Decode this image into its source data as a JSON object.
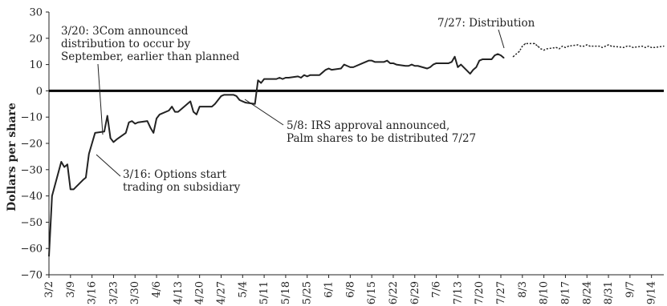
{
  "chart_data": {
    "type": "line",
    "title": "",
    "xlabel": "",
    "ylabel": "Dollars per share",
    "ylim": [
      -70,
      30
    ],
    "y_ticks": [
      30,
      20,
      10,
      0,
      -10,
      -20,
      -30,
      -40,
      -50,
      -60,
      -70
    ],
    "x_range": [
      "2000-03-02",
      "2000-09-18"
    ],
    "x_tick_labels": [
      "3/2",
      "3/9",
      "3/16",
      "3/23",
      "3/30",
      "4/6",
      "4/13",
      "4/20",
      "4/27",
      "5/4",
      "5/11",
      "5/18",
      "5/25",
      "6/1",
      "6/8",
      "6/15",
      "6/22",
      "6/29",
      "7/6",
      "7/13",
      "7/20",
      "7/27",
      "8/3",
      "8/10",
      "8/17",
      "8/24",
      "8/31",
      "9/7",
      "9/14"
    ],
    "x_tick_dates": [
      "2000-03-02",
      "2000-03-09",
      "2000-03-16",
      "2000-03-23",
      "2000-03-30",
      "2000-04-06",
      "2000-04-13",
      "2000-04-20",
      "2000-04-27",
      "2000-05-04",
      "2000-05-11",
      "2000-05-18",
      "2000-05-25",
      "2000-06-01",
      "2000-06-08",
      "2000-06-15",
      "2000-06-22",
      "2000-06-29",
      "2000-07-06",
      "2000-07-13",
      "2000-07-20",
      "2000-07-27",
      "2000-08-03",
      "2000-08-10",
      "2000-08-17",
      "2000-08-24",
      "2000-08-31",
      "2000-09-07",
      "2000-09-14"
    ],
    "zero_line": true,
    "grid": false,
    "series": [
      {
        "style": "solid",
        "color": "#222222",
        "points": [
          [
            "2000-03-02",
            -63
          ],
          [
            "2000-03-03",
            -40
          ],
          [
            "2000-03-06",
            -27
          ],
          [
            "2000-03-07",
            -29
          ],
          [
            "2000-03-08",
            -28
          ],
          [
            "2000-03-09",
            -37.5
          ],
          [
            "2000-03-10",
            -37.5
          ],
          [
            "2000-03-13",
            -34
          ],
          [
            "2000-03-14",
            -33
          ],
          [
            "2000-03-15",
            -24
          ],
          [
            "2000-03-16",
            -20
          ],
          [
            "2000-03-17",
            -16
          ],
          [
            "2000-03-20",
            -15.5
          ],
          [
            "2000-03-21",
            -9.5
          ],
          [
            "2000-03-22",
            -18
          ],
          [
            "2000-03-23",
            -19.5
          ],
          [
            "2000-03-24",
            -18.5
          ],
          [
            "2000-03-27",
            -16
          ],
          [
            "2000-03-28",
            -12
          ],
          [
            "2000-03-29",
            -11.5
          ],
          [
            "2000-03-30",
            -12.5
          ],
          [
            "2000-03-31",
            -12
          ],
          [
            "2000-04-03",
            -11.5
          ],
          [
            "2000-04-04",
            -14
          ],
          [
            "2000-04-05",
            -16
          ],
          [
            "2000-04-06",
            -10.5
          ],
          [
            "2000-04-07",
            -9
          ],
          [
            "2000-04-10",
            -7.5
          ],
          [
            "2000-04-11",
            -6
          ],
          [
            "2000-04-12",
            -8
          ],
          [
            "2000-04-13",
            -8
          ],
          [
            "2000-04-14",
            -7
          ],
          [
            "2000-04-17",
            -4
          ],
          [
            "2000-04-18",
            -8
          ],
          [
            "2000-04-19",
            -9
          ],
          [
            "2000-04-20",
            -6
          ],
          [
            "2000-04-21",
            -6
          ],
          [
            "2000-04-24",
            -6
          ],
          [
            "2000-04-25",
            -5
          ],
          [
            "2000-04-26",
            -3.5
          ],
          [
            "2000-04-27",
            -2
          ],
          [
            "2000-04-28",
            -1.5
          ],
          [
            "2000-05-01",
            -1.5
          ],
          [
            "2000-05-02",
            -2
          ],
          [
            "2000-05-03",
            -3.5
          ],
          [
            "2000-05-04",
            -4
          ],
          [
            "2000-05-05",
            -4.5
          ],
          [
            "2000-05-08",
            -5
          ],
          [
            "2000-05-09",
            4
          ],
          [
            "2000-05-10",
            3
          ],
          [
            "2000-05-11",
            4.5
          ],
          [
            "2000-05-12",
            4.5
          ],
          [
            "2000-05-15",
            4.5
          ],
          [
            "2000-05-16",
            5
          ],
          [
            "2000-05-17",
            4.5
          ],
          [
            "2000-05-18",
            5
          ],
          [
            "2000-05-19",
            5
          ],
          [
            "2000-05-22",
            5.5
          ],
          [
            "2000-05-23",
            5
          ],
          [
            "2000-05-24",
            6
          ],
          [
            "2000-05-25",
            5.5
          ],
          [
            "2000-05-26",
            6
          ],
          [
            "2000-05-29",
            6
          ],
          [
            "2000-05-30",
            7
          ],
          [
            "2000-05-31",
            8
          ],
          [
            "2000-06-01",
            8.5
          ],
          [
            "2000-06-02",
            8
          ],
          [
            "2000-06-05",
            8.5
          ],
          [
            "2000-06-06",
            10
          ],
          [
            "2000-06-07",
            9.5
          ],
          [
            "2000-06-08",
            9
          ],
          [
            "2000-06-09",
            9
          ],
          [
            "2000-06-12",
            10.5
          ],
          [
            "2000-06-13",
            11
          ],
          [
            "2000-06-14",
            11.5
          ],
          [
            "2000-06-15",
            11.5
          ],
          [
            "2000-06-16",
            11
          ],
          [
            "2000-06-19",
            11
          ],
          [
            "2000-06-20",
            11.5
          ],
          [
            "2000-06-21",
            10.5
          ],
          [
            "2000-06-22",
            10.5
          ],
          [
            "2000-06-23",
            10
          ],
          [
            "2000-06-26",
            9.5
          ],
          [
            "2000-06-27",
            9.5
          ],
          [
            "2000-06-28",
            10
          ],
          [
            "2000-06-29",
            9.5
          ],
          [
            "2000-06-30",
            9.5
          ],
          [
            "2000-07-03",
            8.5
          ],
          [
            "2000-07-04",
            9
          ],
          [
            "2000-07-05",
            10
          ],
          [
            "2000-07-06",
            10.5
          ],
          [
            "2000-07-07",
            10.5
          ],
          [
            "2000-07-10",
            10.5
          ],
          [
            "2000-07-11",
            11
          ],
          [
            "2000-07-12",
            13
          ],
          [
            "2000-07-13",
            9
          ],
          [
            "2000-07-14",
            10
          ],
          [
            "2000-07-17",
            6.5
          ],
          [
            "2000-07-18",
            8
          ],
          [
            "2000-07-19",
            9
          ],
          [
            "2000-07-20",
            11.5
          ],
          [
            "2000-07-21",
            12
          ],
          [
            "2000-07-24",
            12
          ],
          [
            "2000-07-25",
            13.5
          ],
          [
            "2000-07-26",
            14
          ],
          [
            "2000-07-27",
            13.5
          ],
          [
            "2000-07-28",
            12.5
          ]
        ]
      },
      {
        "style": "dotted",
        "color": "#222222",
        "points": [
          [
            "2000-07-31",
            13
          ],
          [
            "2000-08-02",
            15
          ],
          [
            "2000-08-03",
            17
          ],
          [
            "2000-08-04",
            18
          ],
          [
            "2000-08-07",
            18
          ],
          [
            "2000-08-08",
            17
          ],
          [
            "2000-08-09",
            16
          ],
          [
            "2000-08-10",
            15.5
          ],
          [
            "2000-08-11",
            16
          ],
          [
            "2000-08-14",
            16.5
          ],
          [
            "2000-08-15",
            16
          ],
          [
            "2000-08-16",
            17
          ],
          [
            "2000-08-17",
            16.5
          ],
          [
            "2000-08-18",
            17
          ],
          [
            "2000-08-21",
            17.5
          ],
          [
            "2000-08-22",
            17
          ],
          [
            "2000-08-23",
            17
          ],
          [
            "2000-08-24",
            17.5
          ],
          [
            "2000-08-25",
            17
          ],
          [
            "2000-08-28",
            17
          ],
          [
            "2000-08-29",
            16.5
          ],
          [
            "2000-08-30",
            17
          ],
          [
            "2000-08-31",
            17.5
          ],
          [
            "2000-09-01",
            17
          ],
          [
            "2000-09-05",
            16.5
          ],
          [
            "2000-09-06",
            17
          ],
          [
            "2000-09-07",
            17
          ],
          [
            "2000-09-08",
            16.5
          ],
          [
            "2000-09-11",
            17
          ],
          [
            "2000-09-12",
            16.5
          ],
          [
            "2000-09-13",
            17
          ],
          [
            "2000-09-14",
            16.5
          ],
          [
            "2000-09-15",
            16.5
          ],
          [
            "2000-09-18",
            17
          ]
        ]
      }
    ],
    "annotations": [
      {
        "lines": [
          "3/20: 3Com announced",
          "distribution to occur by",
          "September, earlier than planned"
        ],
        "target": [
          "2000-03-20",
          -15.5
        ]
      },
      {
        "lines": [
          "7/27: Distribution"
        ],
        "target": [
          "2000-07-27",
          13.5
        ]
      },
      {
        "lines": [
          "5/8: IRS approval announced,",
          "Palm shares to be distributed 7/27"
        ],
        "target": [
          "2000-05-08",
          -4.5
        ]
      },
      {
        "lines": [
          "3/16: Options start",
          "trading on subsidiary"
        ],
        "target": [
          "2000-03-16",
          -20
        ]
      }
    ]
  }
}
